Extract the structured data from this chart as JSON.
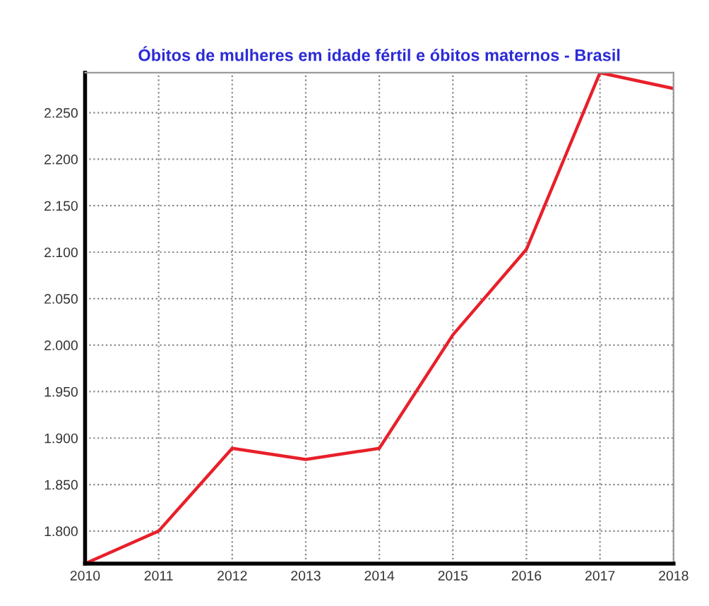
{
  "chart_data": {
    "type": "line",
    "title": "Óbitos de mulheres em idade fértil e óbitos maternos - Brasil",
    "x": [
      2010,
      2011,
      2012,
      2013,
      2014,
      2015,
      2016,
      2017,
      2018
    ],
    "series": [
      {
        "color": "#e8202a",
        "values": [
          1765,
          1800,
          1889,
          1877,
          1889,
          2011,
          2103,
          2293,
          2276
        ]
      }
    ],
    "xlim": [
      2010,
      2018
    ],
    "xticks": [
      2010,
      2011,
      2012,
      2013,
      2014,
      2015,
      2016,
      2017,
      2018
    ],
    "ylim": [
      1765,
      2293
    ],
    "yticks": [
      {
        "value": 1800,
        "label": "1.800"
      },
      {
        "value": 1850,
        "label": "1.850"
      },
      {
        "value": 1900,
        "label": "1.900"
      },
      {
        "value": 1950,
        "label": "1.950"
      },
      {
        "value": 2000,
        "label": "2.000"
      },
      {
        "value": 2050,
        "label": "2.050"
      },
      {
        "value": 2100,
        "label": "2.100"
      },
      {
        "value": 2150,
        "label": "2.150"
      },
      {
        "value": 2200,
        "label": "2.200"
      },
      {
        "value": 2250,
        "label": "2.250"
      }
    ],
    "grid": true,
    "legend": false,
    "marker": "none",
    "line_style": "solid"
  }
}
